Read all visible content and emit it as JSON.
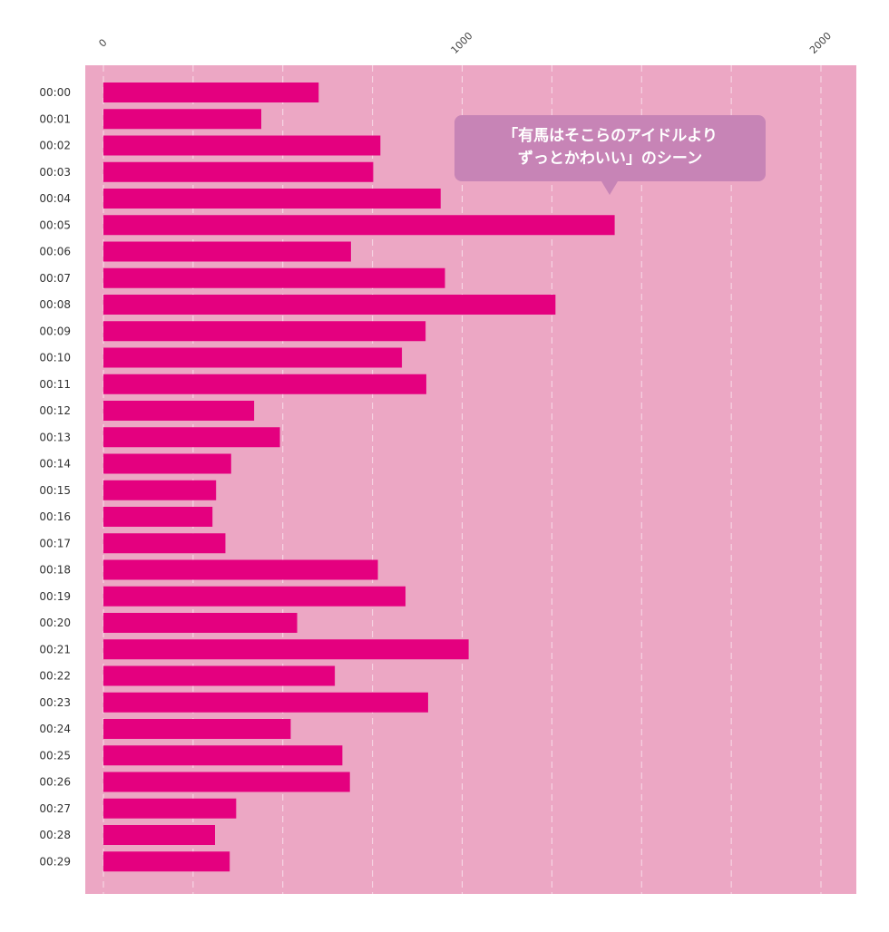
{
  "chart_data": {
    "type": "bar",
    "orientation": "horizontal",
    "categories": [
      "00:00",
      "00:01",
      "00:02",
      "00:03",
      "00:04",
      "00:05",
      "00:06",
      "00:07",
      "00:08",
      "00:09",
      "00:10",
      "00:11",
      "00:12",
      "00:13",
      "00:14",
      "00:15",
      "00:16",
      "00:17",
      "00:18",
      "00:19",
      "00:20",
      "00:21",
      "00:22",
      "00:23",
      "00:24",
      "00:25",
      "00:26",
      "00:27",
      "00:28",
      "00:29"
    ],
    "values": [
      600,
      440,
      772,
      752,
      940,
      1425,
      690,
      952,
      1260,
      898,
      832,
      900,
      420,
      492,
      356,
      314,
      304,
      340,
      765,
      842,
      540,
      1018,
      645,
      905,
      522,
      666,
      687,
      370,
      311,
      352
    ],
    "xlim": [
      0,
      2100
    ],
    "xticks": [
      0,
      1000,
      2000
    ],
    "xtick_labels": [
      "0",
      "1000",
      "2000"
    ],
    "grid": "vertical dashed every 250",
    "annotation": {
      "line1": "「有馬はそこらのアイドルより",
      "line2": "ずっとかわいい」のシーン",
      "points_to": "00:05"
    },
    "title": "",
    "xlabel": "",
    "ylabel": ""
  },
  "colors": {
    "background": "#eca7c4",
    "bar": "#e4007f",
    "grid": "#f8dce8",
    "tooltip": "#c784b6",
    "tooltip_text": "#ffffff"
  }
}
